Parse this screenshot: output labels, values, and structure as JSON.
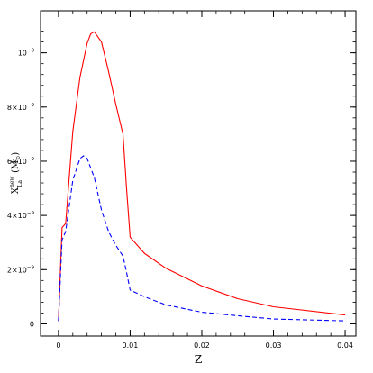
{
  "chart_data": {
    "type": "line",
    "title": "",
    "xlabel": "Z",
    "ylabel": {
      "base": "X",
      "superscript": "new",
      "subscript": "La",
      "units": "(M",
      "units_sub": "⊙",
      "units_end": ")"
    },
    "xlim": [
      -0.0025,
      0.0415
    ],
    "ylim": [
      -4.5e-10,
      1.155e-08
    ],
    "x_ticks": [
      {
        "value": 0,
        "label": "0"
      },
      {
        "value": 0.01,
        "label": "0.01"
      },
      {
        "value": 0.02,
        "label": "0.02"
      },
      {
        "value": 0.03,
        "label": "0.03"
      },
      {
        "value": 0.04,
        "label": "0.04"
      }
    ],
    "y_ticks": [
      {
        "value": 0,
        "label": "0",
        "exp": ""
      },
      {
        "value": 2e-09,
        "label": "2×10",
        "exp": "−9"
      },
      {
        "value": 4e-09,
        "label": "4×10",
        "exp": "−9"
      },
      {
        "value": 6e-09,
        "label": "6×10",
        "exp": "−9"
      },
      {
        "value": 8e-09,
        "label": "8×10",
        "exp": "−9"
      },
      {
        "value": 1e-08,
        "label": "10",
        "exp": "−8"
      }
    ],
    "grid": false,
    "series": [
      {
        "color": "#ff0000",
        "dash": "solid",
        "x": [
          0.0,
          0.0005,
          0.001,
          0.002,
          0.003,
          0.004,
          0.0045,
          0.005,
          0.006,
          0.007,
          0.008,
          0.009,
          0.0095,
          0.01,
          0.012,
          0.015,
          0.02,
          0.025,
          0.03,
          0.04
        ],
        "y": [
          1e-10,
          3.55e-09,
          3.7e-09,
          7.1e-09,
          9.1e-09,
          1.035e-08,
          1.07e-08,
          1.078e-08,
          1.04e-08,
          9.3e-09,
          8.1e-09,
          7e-09,
          5e-09,
          3.2e-09,
          2.6e-09,
          2.05e-09,
          1.4e-09,
          9.3e-10,
          6.3e-10,
          3.3e-10
        ]
      },
      {
        "color": "#0000ff",
        "dash": "dashed",
        "x": [
          0.0,
          0.0005,
          0.001,
          0.002,
          0.003,
          0.0035,
          0.004,
          0.005,
          0.006,
          0.007,
          0.008,
          0.009,
          0.0095,
          0.01,
          0.012,
          0.015,
          0.02,
          0.025,
          0.03,
          0.04
        ],
        "y": [
          1e-10,
          3.1e-09,
          3.4e-09,
          5.3e-09,
          6.1e-09,
          6.2e-09,
          6.1e-09,
          5.4e-09,
          4.2e-09,
          3.4e-09,
          2.9e-09,
          2.5e-09,
          1.9e-09,
          1.25e-09,
          1e-09,
          7e-10,
          4.3e-10,
          3e-10,
          1.8e-10,
          1.1e-10
        ]
      }
    ]
  }
}
